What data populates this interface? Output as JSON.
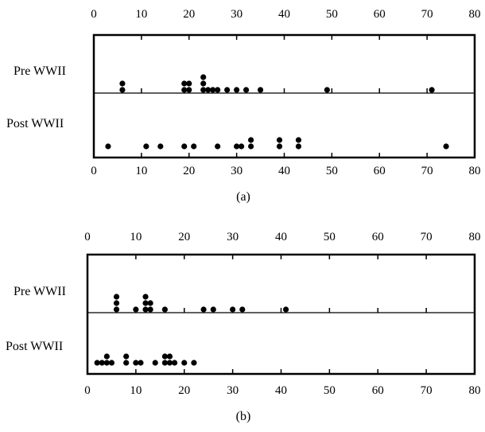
{
  "chart_data": [
    {
      "type": "scatter",
      "caption": "(a)",
      "xlim": [
        0,
        80
      ],
      "ticks": [
        0,
        10,
        20,
        30,
        40,
        50,
        60,
        70,
        80
      ],
      "tick_labels": [
        "0",
        "10",
        "20",
        "30",
        "40",
        "50",
        "60",
        "70",
        "80"
      ],
      "legend": "none",
      "grid": false,
      "series": [
        {
          "name": "Pre WWII",
          "values": [
            6,
            6,
            19,
            19,
            20,
            20,
            23,
            23,
            23,
            24,
            25,
            26,
            28,
            30,
            32,
            35,
            49,
            71
          ]
        },
        {
          "name": "Post WWII",
          "values": [
            3,
            11,
            14,
            19,
            21,
            26,
            30,
            31,
            33,
            33,
            39,
            39,
            43,
            43,
            74
          ]
        }
      ]
    },
    {
      "type": "scatter",
      "caption": "(b)",
      "xlim": [
        0,
        80
      ],
      "ticks": [
        0,
        10,
        20,
        30,
        40,
        50,
        60,
        70,
        80
      ],
      "tick_labels": [
        "0",
        "10",
        "20",
        "30",
        "40",
        "50",
        "60",
        "70",
        "80"
      ],
      "legend": "none",
      "grid": false,
      "series": [
        {
          "name": "Pre WWII",
          "values": [
            6,
            6,
            6,
            10,
            12,
            12,
            12,
            13,
            13,
            16,
            24,
            26,
            30,
            32,
            41
          ]
        },
        {
          "name": "Post WWII",
          "values": [
            2,
            3,
            4,
            4,
            5,
            8,
            8,
            10,
            11,
            14,
            16,
            16,
            17,
            17,
            18,
            20,
            22
          ]
        }
      ]
    }
  ]
}
